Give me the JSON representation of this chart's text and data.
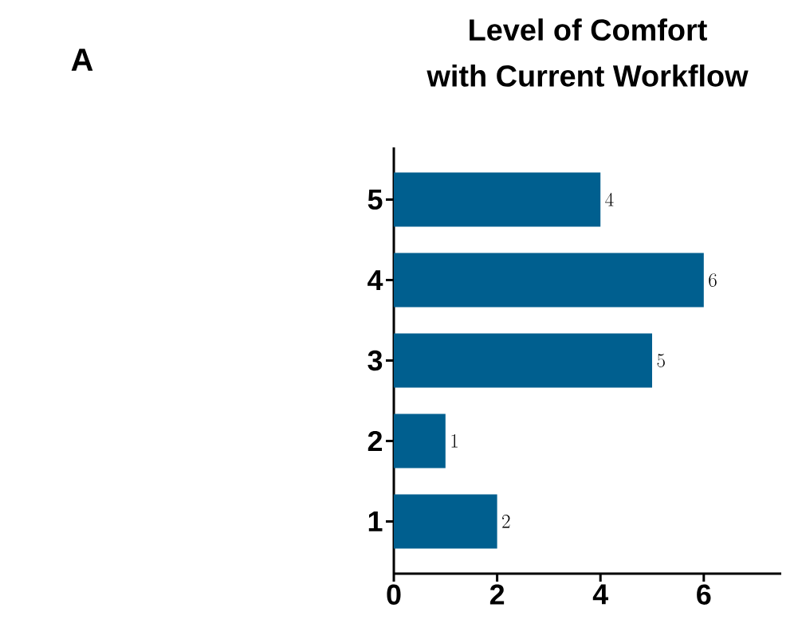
{
  "chart_data": {
    "type": "bar",
    "orientation": "horizontal",
    "title": "Level of Comfort\nwith Current Workflow",
    "annotations": [
      "A"
    ],
    "categories": [
      "5",
      "4",
      "3",
      "2",
      "1"
    ],
    "values": [
      4,
      6,
      5,
      1,
      2
    ],
    "color": "#005f8f",
    "data_labels": true,
    "xlim": [
      0,
      7.5
    ],
    "xticks": [
      0,
      2,
      4,
      6
    ]
  }
}
